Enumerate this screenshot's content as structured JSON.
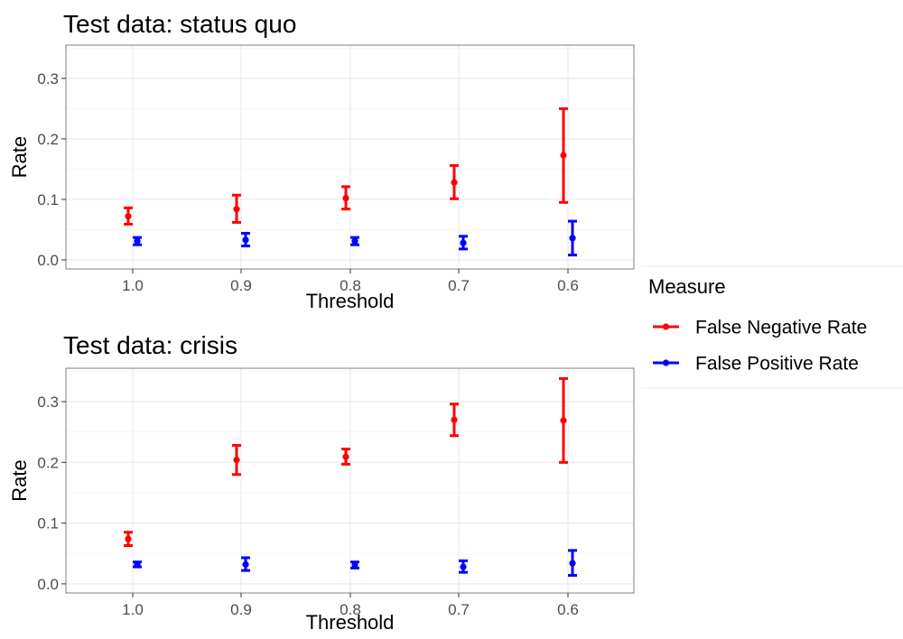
{
  "chart_data": [
    {
      "type": "scatter",
      "title": "Test data: status quo",
      "xlabel": "Threshold",
      "ylabel": "Rate",
      "x_categories": [
        "1.0",
        "0.9",
        "0.8",
        "0.7",
        "0.6"
      ],
      "ylim": [
        -0.015,
        0.355
      ],
      "y_ticks": [
        "0.0",
        "0.1",
        "0.2",
        "0.3"
      ],
      "y_tick_values": [
        0.0,
        0.1,
        0.2,
        0.3
      ],
      "grid": true,
      "series": [
        {
          "name": "False Negative Rate",
          "color": "#ff0000",
          "values": [
            0.072,
            0.084,
            0.102,
            0.128,
            0.173
          ],
          "lower": [
            0.059,
            0.062,
            0.084,
            0.101,
            0.095
          ],
          "upper": [
            0.086,
            0.107,
            0.121,
            0.156,
            0.25
          ]
        },
        {
          "name": "False Positive Rate",
          "color": "#0000ff",
          "values": [
            0.031,
            0.033,
            0.031,
            0.028,
            0.036
          ],
          "lower": [
            0.025,
            0.023,
            0.025,
            0.018,
            0.008
          ],
          "upper": [
            0.037,
            0.044,
            0.037,
            0.039,
            0.064
          ]
        }
      ]
    },
    {
      "type": "scatter",
      "title": "Test data: crisis",
      "xlabel": "Threshold",
      "ylabel": "Rate",
      "x_categories": [
        "1.0",
        "0.9",
        "0.8",
        "0.7",
        "0.6"
      ],
      "ylim": [
        -0.015,
        0.355
      ],
      "y_ticks": [
        "0.0",
        "0.1",
        "0.2",
        "0.3"
      ],
      "y_tick_values": [
        0.0,
        0.1,
        0.2,
        0.3
      ],
      "grid": true,
      "series": [
        {
          "name": "False Negative Rate",
          "color": "#ff0000",
          "values": [
            0.074,
            0.204,
            0.209,
            0.27,
            0.269
          ],
          "lower": [
            0.063,
            0.18,
            0.197,
            0.244,
            0.2
          ],
          "upper": [
            0.085,
            0.228,
            0.222,
            0.296,
            0.338
          ]
        },
        {
          "name": "False Positive Rate",
          "color": "#0000ff",
          "values": [
            0.032,
            0.032,
            0.031,
            0.028,
            0.034
          ],
          "lower": [
            0.028,
            0.022,
            0.026,
            0.019,
            0.014
          ],
          "upper": [
            0.036,
            0.043,
            0.036,
            0.038,
            0.055
          ]
        }
      ]
    }
  ],
  "legend": {
    "title": "Measure",
    "position": "right",
    "items": [
      {
        "label": "False Negative Rate",
        "color": "#ff0000"
      },
      {
        "label": "False Positive Rate",
        "color": "#0000ff"
      }
    ]
  }
}
